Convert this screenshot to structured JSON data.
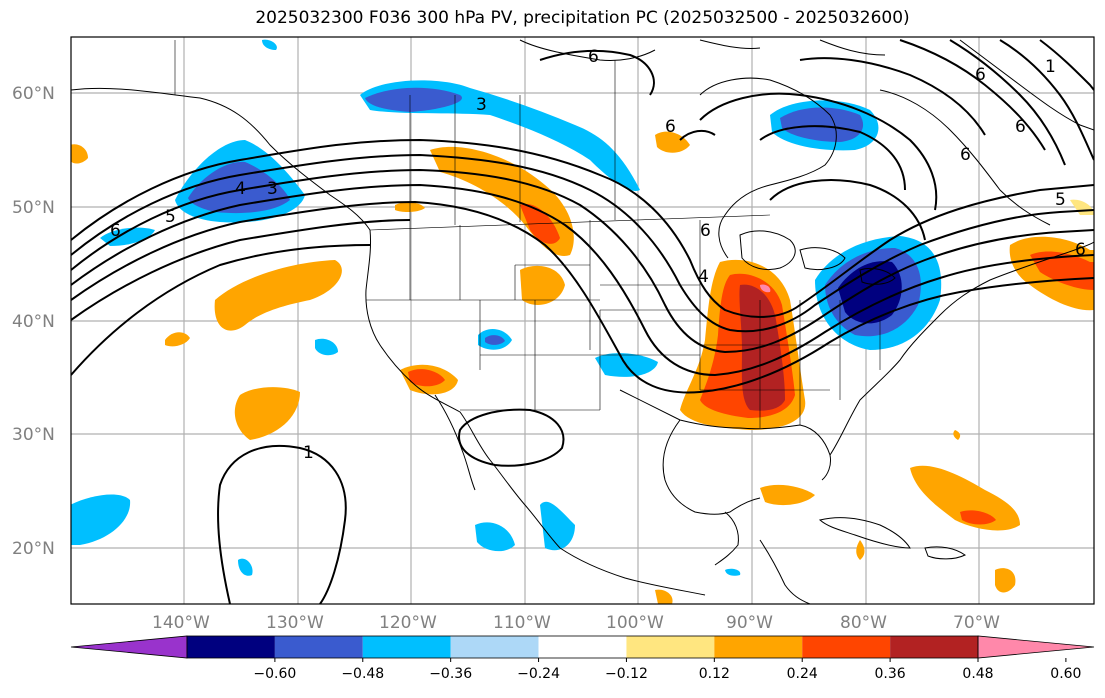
{
  "title": "2025032300 F036 300 hPa PV, precipitation PC (2025032500 - 2025032600)",
  "lat_labels": [
    "60°N",
    "50°N",
    "40°N",
    "30°N",
    "20°N"
  ],
  "lon_labels": [
    "140°W",
    "130°W",
    "120°W",
    "110°W",
    "100°W",
    "90°W",
    "80°W",
    "70°W"
  ],
  "colorbar": {
    "ticks": [
      "−0.60",
      "−0.48",
      "−0.36",
      "−0.24",
      "−0.12",
      "0.12",
      "0.24",
      "0.36",
      "0.48",
      "0.60"
    ],
    "colors": [
      "#9933cc",
      "#00007f",
      "#3a5bcf",
      "#00bfff",
      "#add8f7",
      "#ffffff",
      "#ffe680",
      "#ffa500",
      "#ff4500",
      "#b22222",
      "#ff88aa"
    ]
  },
  "contour_labels": [
    "3",
    "4",
    "3",
    "5",
    "6",
    "6",
    "6",
    "6",
    "6",
    "6",
    "5",
    "1",
    "1",
    "6",
    "6",
    "4"
  ],
  "colors": {
    "grid": "#b0b0b0",
    "coast": "#000000",
    "contour": "#000000"
  }
}
